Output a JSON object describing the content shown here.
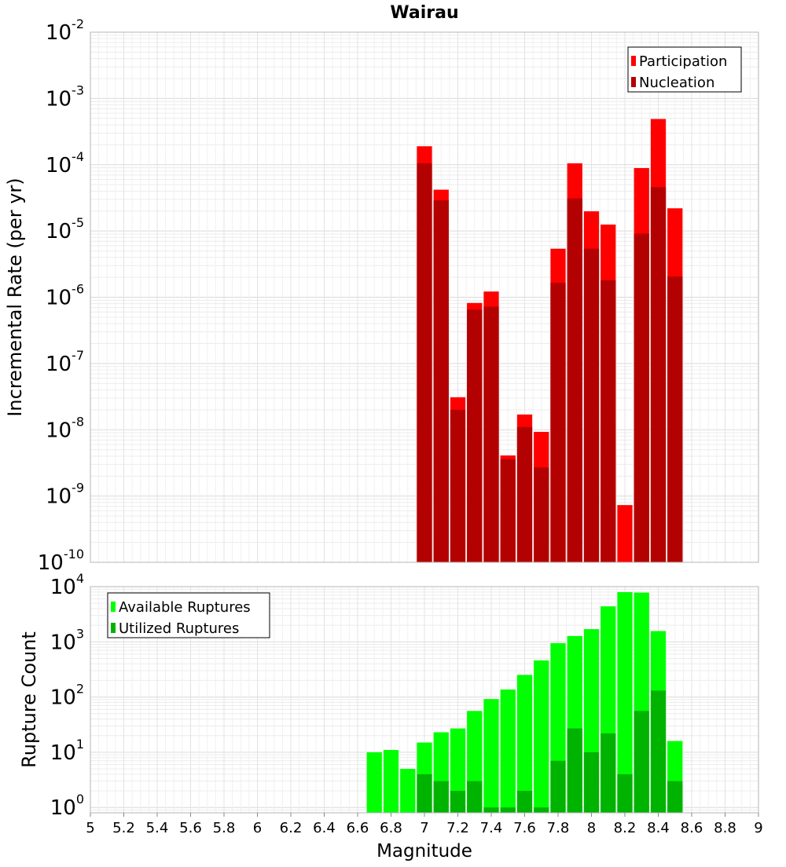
{
  "chart_data": [
    {
      "type": "bar",
      "title": "Wairau",
      "xlabel": "",
      "ylabel": "Incremental Rate (per yr)",
      "y_scale": "log",
      "ylim": [
        1e-10,
        0.01
      ],
      "xlim": [
        5,
        9
      ],
      "grid": true,
      "legend_position": "top-right",
      "bar_width": 0.1,
      "x": [
        7.0,
        7.1,
        7.2,
        7.3,
        7.4,
        7.5,
        7.6,
        7.7,
        7.8,
        7.9,
        8.0,
        8.1,
        8.2,
        8.3,
        8.4,
        8.5
      ],
      "series": [
        {
          "name": "Participation",
          "color": "#ff0000",
          "values": [
            0.00019,
            4.2e-05,
            3.1e-08,
            8.2e-07,
            1.22e-06,
            4.1e-09,
            1.7e-08,
            9.3e-09,
            5.4e-06,
            0.000105,
            1.98e-05,
            1.25e-05,
            7.3e-10,
            8.9e-05,
            0.00049,
            2.2e-05
          ]
        },
        {
          "name": "Nucleation",
          "color": "#b30000",
          "values": [
            0.000105,
            2.9e-05,
            2e-08,
            6.5e-07,
            7.2e-07,
            3.6e-09,
            1.1e-08,
            2.7e-09,
            1.65e-06,
            3.1e-05,
            5.4e-06,
            1.8e-06,
            null,
            9.1e-06,
            4.6e-05,
            2.05e-06
          ]
        }
      ]
    },
    {
      "type": "bar",
      "title": "",
      "xlabel": "Magnitude",
      "ylabel": "Rupture Count",
      "y_scale": "log",
      "ylim": [
        0.8,
        10000
      ],
      "xlim": [
        5,
        9
      ],
      "grid": true,
      "legend_position": "top-left",
      "bar_width": 0.1,
      "x_ticks": [
        "5",
        "5.2",
        "5.4",
        "5.6",
        "5.8",
        "6",
        "6.2",
        "6.4",
        "6.6",
        "6.8",
        "7",
        "7.2",
        "7.4",
        "7.6",
        "7.8",
        "8",
        "8.2",
        "8.4",
        "8.6",
        "8.8",
        "9"
      ],
      "x": [
        6.7,
        6.8,
        6.9,
        7.0,
        7.1,
        7.2,
        7.3,
        7.4,
        7.5,
        7.6,
        7.7,
        7.8,
        7.9,
        8.0,
        8.1,
        8.2,
        8.3,
        8.4,
        8.5
      ],
      "series": [
        {
          "name": "Available Ruptures",
          "color": "#00ff00",
          "values": [
            10,
            11,
            5,
            15,
            23,
            27,
            56,
            92,
            137,
            252,
            461,
            946,
            1275,
            1700,
            4395,
            7950,
            7800,
            1568,
            16
          ]
        },
        {
          "name": "Utilized Ruptures",
          "color": "#00b300",
          "values": [
            null,
            null,
            null,
            4,
            3,
            2,
            3,
            1,
            1,
            2,
            1,
            7,
            27,
            10,
            22,
            4,
            56,
            131,
            3
          ]
        }
      ]
    }
  ]
}
